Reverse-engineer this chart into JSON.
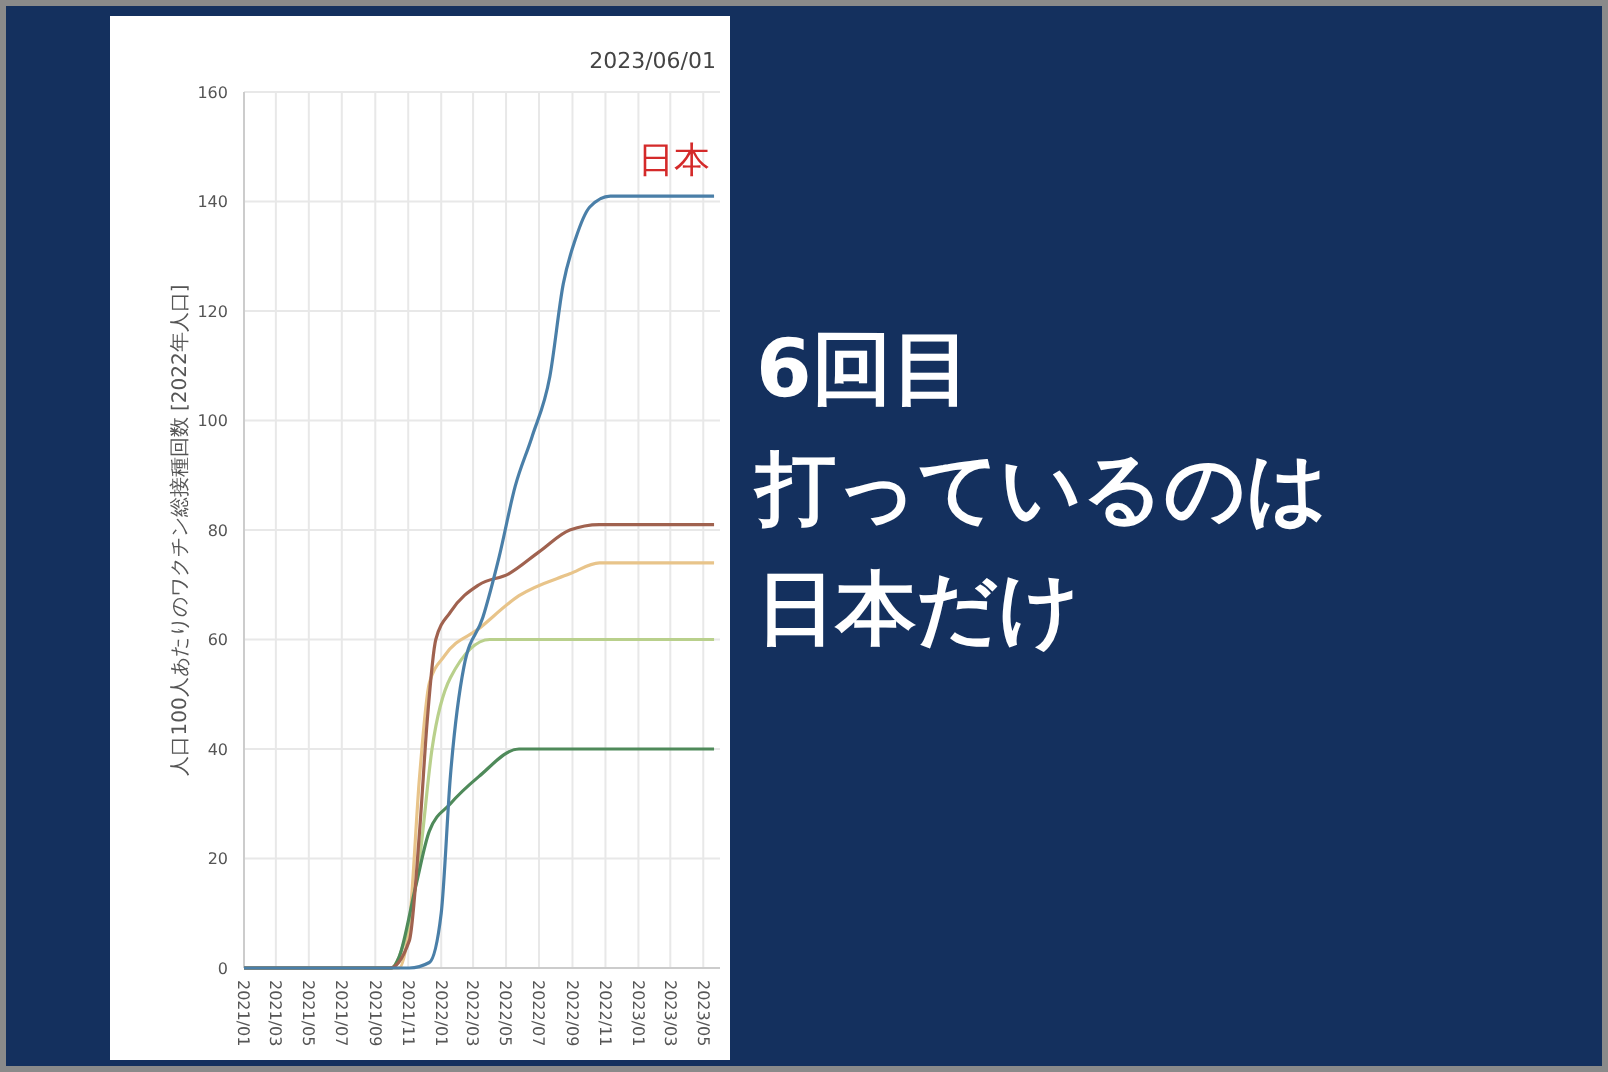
{
  "chart_data": {
    "type": "line",
    "title": "6回目打っているのは日本だけ",
    "ylabel": "人口100人あたりのワクチン総接種回数 [2022年人口]",
    "annotations": [
      "2023/06/01"
    ],
    "xlim": [
      "2021-01-01",
      "2023-06-01"
    ],
    "xticks": [
      {
        "value": "2021-01",
        "label": "2021/01"
      },
      {
        "value": "2021-03",
        "label": "2021/03"
      },
      {
        "value": "2021-05",
        "label": "2021/05"
      },
      {
        "value": "2021-07",
        "label": "2021/07"
      },
      {
        "value": "2021-09",
        "label": "2021/09"
      },
      {
        "value": "2021-11",
        "label": "2021/11"
      },
      {
        "value": "2022-01",
        "label": "2022/01"
      },
      {
        "value": "2022-03",
        "label": "2022/03"
      },
      {
        "value": "2022-05",
        "label": "2022/05"
      },
      {
        "value": "2022-07",
        "label": "2022/07"
      },
      {
        "value": "2022-09",
        "label": "2022/09"
      },
      {
        "value": "2022-11",
        "label": "2022/11"
      },
      {
        "value": "2023-01",
        "label": "2023/01"
      },
      {
        "value": "2023-03",
        "label": "2023/03"
      },
      {
        "value": "2023-05",
        "label": "2023/05"
      }
    ],
    "ylim": [
      0,
      160
    ],
    "yticks": [
      0,
      20,
      40,
      60,
      80,
      100,
      120,
      140,
      160
    ],
    "grid": true,
    "marker": "none",
    "line_style": "solid",
    "series": [
      {
        "color": "#e8c48a",
        "x": [
          "2021-01-01",
          "2021-10-15",
          "2021-11-03",
          "2021-11-22",
          "2021-12-10",
          "2022-01-07",
          "2022-03-12",
          "2022-05-25",
          "2022-08-27",
          "2022-10-21",
          "2023-05-21"
        ],
        "values": [
          0,
          0,
          8,
          35,
          52,
          57,
          62,
          68,
          72,
          74,
          74
        ]
      },
      {
        "color": "#b9d08c",
        "x": [
          "2021-01-01",
          "2021-10-01",
          "2021-10-15",
          "2021-11-22",
          "2021-12-15",
          "2022-01-18",
          "2022-04-01",
          "2023-05-21"
        ],
        "values": [
          0,
          0,
          2,
          20,
          40,
          53,
          60,
          60
        ]
      },
      {
        "color": "#4f8a5a",
        "x": [
          "2021-01-01",
          "2021-10-01",
          "2021-10-15",
          "2021-11-15",
          "2021-12-10",
          "2022-01-18",
          "2022-03-12",
          "2022-05-25",
          "2023-05-21"
        ],
        "values": [
          0,
          0,
          2,
          15,
          25,
          30,
          35,
          40,
          40
        ]
      },
      {
        "color": "#a0624f",
        "x": [
          "2021-01-01",
          "2021-09-28",
          "2021-11-03",
          "2021-11-22",
          "2021-12-06",
          "2021-12-22",
          "2022-01-18",
          "2022-03-12",
          "2022-05-06",
          "2022-07-01",
          "2022-08-27",
          "2022-10-21",
          "2023-05-21"
        ],
        "values": [
          0,
          0,
          5,
          25,
          45,
          60,
          65,
          70,
          72,
          76,
          80,
          81,
          81
        ]
      },
      {
        "name": "日本",
        "color": "#4a7fa8",
        "x": [
          "2021-01-01",
          "2021-11-03",
          "2021-12-10",
          "2022-01-01",
          "2022-01-18",
          "2022-02-12",
          "2022-03-19",
          "2022-04-18",
          "2022-05-18",
          "2022-06-18",
          "2022-07-21",
          "2022-08-15",
          "2022-09-06",
          "2022-10-03",
          "2022-11-10",
          "2023-05-21"
        ],
        "values": [
          0,
          0,
          1,
          10,
          35,
          55,
          64,
          75,
          88,
          97,
          108,
          125,
          133,
          139,
          141,
          141
        ]
      }
    ]
  }
}
